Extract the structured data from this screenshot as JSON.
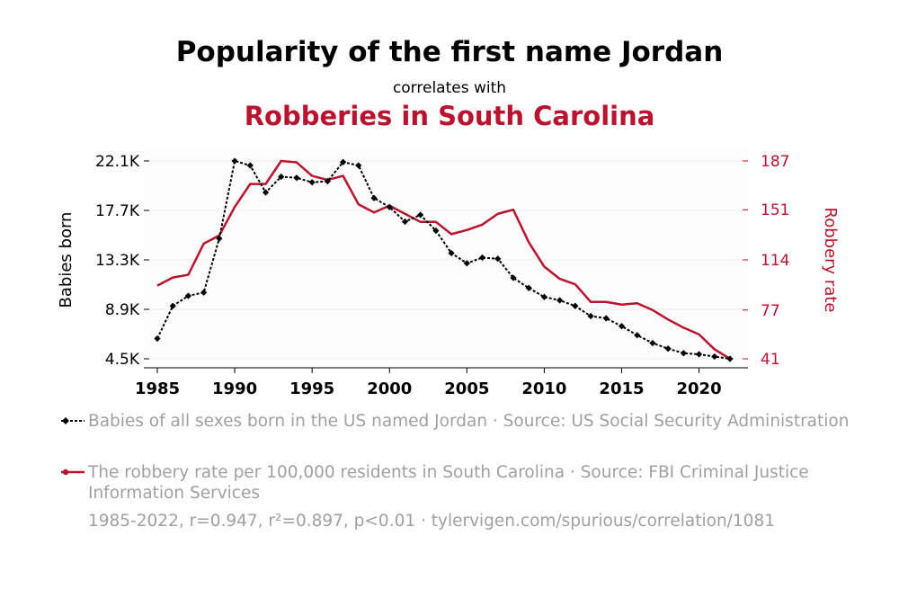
{
  "header": {
    "title": "Popularity of the first name Jordan",
    "subtitle": "correlates with",
    "title2": "Robberies in South Carolina"
  },
  "colors": {
    "series1": "#000000",
    "series2": "#b8132f",
    "grid": "#eeeeee",
    "text_muted": "#a0a0a0"
  },
  "chart_data": {
    "type": "line",
    "x": [
      1985,
      1986,
      1987,
      1988,
      1989,
      1990,
      1991,
      1992,
      1993,
      1994,
      1995,
      1996,
      1997,
      1998,
      1999,
      2000,
      2001,
      2002,
      2003,
      2004,
      2005,
      2006,
      2007,
      2008,
      2009,
      2010,
      2011,
      2012,
      2013,
      2014,
      2015,
      2016,
      2017,
      2018,
      2019,
      2020,
      2021,
      2022
    ],
    "xticks": [
      1985,
      1990,
      1995,
      2000,
      2005,
      2010,
      2015,
      2020
    ],
    "xtick_labels": [
      "1985",
      "1990",
      "1995",
      "2000",
      "2005",
      "2010",
      "2015",
      "2020"
    ],
    "xlim": [
      1985,
      2022
    ],
    "series": [
      {
        "name": "Babies of all sexes born in the US named Jordan",
        "axis": "left",
        "style": "dotted",
        "marker": "diamond",
        "values": [
          6300,
          9200,
          10100,
          10400,
          15200,
          22100,
          21700,
          19300,
          20700,
          20600,
          20200,
          20300,
          22000,
          21700,
          18800,
          18000,
          16700,
          17300,
          15900,
          13900,
          13000,
          13500,
          13400,
          11700,
          10800,
          10000,
          9700,
          9200,
          8300,
          8100,
          7400,
          6600,
          5900,
          5400,
          5000,
          4900,
          4700,
          4500
        ]
      },
      {
        "name": "The robbery rate per 100,000 residents in South Carolina",
        "axis": "right",
        "style": "solid",
        "marker": "none",
        "values": [
          95,
          101,
          103,
          126,
          132,
          153,
          170,
          170,
          187,
          186,
          176,
          173,
          176,
          155,
          149,
          154,
          148,
          142,
          142,
          133,
          136,
          140,
          148,
          151,
          127,
          109,
          100,
          96,
          83,
          83,
          81,
          82,
          77,
          70,
          64,
          59,
          48,
          41
        ]
      }
    ],
    "y_left": {
      "label": "Babies born",
      "ticks": [
        4500,
        8900,
        13300,
        17700,
        22100
      ],
      "tick_labels": [
        "4.5K",
        "8.9K",
        "13.3K",
        "17.7K",
        "22.1K"
      ],
      "ylim": [
        4500,
        22100
      ]
    },
    "y_right": {
      "label": "Robbery rate",
      "ticks": [
        41,
        77,
        114,
        151,
        187
      ],
      "tick_labels": [
        "41",
        "77",
        "114",
        "151",
        "187"
      ],
      "ylim": [
        41,
        187
      ]
    },
    "grid": "horizontal"
  },
  "legend": [
    {
      "text": "Babies of all sexes born in the US named Jordan · Source: US Social Security Administration"
    },
    {
      "text": "The robbery rate per 100,000 residents in South Carolina · Source: FBI Criminal Justice Information Services"
    }
  ],
  "footer": "1985-2022, r=0.947, r²=0.897, p<0.01 · tylervigen.com/spurious/correlation/1081"
}
